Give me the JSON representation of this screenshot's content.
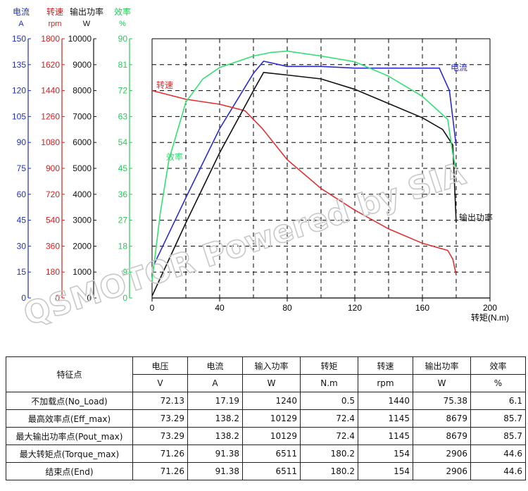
{
  "chart_data": {
    "type": "line",
    "x": [
      0,
      20,
      40,
      60,
      66,
      80,
      100,
      120,
      140,
      160,
      172,
      178,
      180
    ],
    "xlabel": "转矩(N.m)",
    "xticks": [
      0,
      40,
      80,
      120,
      160,
      200
    ],
    "xlim": [
      0,
      200
    ],
    "grid": true,
    "watermark": "QSMOTOR Powered by SIA",
    "axes": [
      {
        "key": "current",
        "title": "电流",
        "unit": "A",
        "color": "#1f2fb8",
        "ticks": [
          0,
          15,
          30,
          45,
          60,
          75,
          90,
          105,
          120,
          135,
          150
        ],
        "ylim": [
          0,
          150
        ]
      },
      {
        "key": "speed",
        "title": "转速",
        "unit": "rpm",
        "color": "#d22020",
        "ticks": [
          0,
          180,
          360,
          540,
          720,
          900,
          1080,
          1260,
          1440,
          1620,
          1800
        ],
        "ylim": [
          0,
          1800
        ]
      },
      {
        "key": "power",
        "title": "输出功率",
        "unit": "W",
        "color": "#111111",
        "ticks": [
          0,
          1000,
          2000,
          3000,
          4000,
          5000,
          6000,
          7000,
          8000,
          9000,
          10000
        ],
        "ylim": [
          0,
          10000
        ]
      },
      {
        "key": "efficiency",
        "title": "效率",
        "unit": "%",
        "color": "#22cc55",
        "ticks": [
          0,
          9,
          18,
          27,
          36,
          45,
          54,
          63,
          72,
          81,
          90
        ],
        "ylim": [
          0,
          90
        ]
      }
    ],
    "series": [
      {
        "name": "电流",
        "axis": "current",
        "color": "#2a2ad0",
        "points": [
          [
            0,
            17
          ],
          [
            20,
            58
          ],
          [
            40,
            98
          ],
          [
            60,
            130
          ],
          [
            66,
            137
          ],
          [
            80,
            134
          ],
          [
            100,
            134
          ],
          [
            120,
            133
          ],
          [
            140,
            133
          ],
          [
            160,
            133
          ],
          [
            170,
            133
          ],
          [
            176,
            120
          ],
          [
            180,
            88
          ]
        ]
      },
      {
        "name": "转速",
        "axis": "speed",
        "color": "#e03030",
        "points": [
          [
            0,
            1440
          ],
          [
            20,
            1380
          ],
          [
            40,
            1345
          ],
          [
            55,
            1300
          ],
          [
            65,
            1180
          ],
          [
            80,
            960
          ],
          [
            100,
            760
          ],
          [
            120,
            610
          ],
          [
            140,
            480
          ],
          [
            160,
            380
          ],
          [
            175,
            330
          ],
          [
            178,
            270
          ],
          [
            180,
            160
          ]
        ]
      },
      {
        "name": "输出功率",
        "axis": "power",
        "color": "#111111",
        "points": [
          [
            0,
            75
          ],
          [
            20,
            2900
          ],
          [
            40,
            5600
          ],
          [
            60,
            8000
          ],
          [
            66,
            8700
          ],
          [
            80,
            8600
          ],
          [
            100,
            8450
          ],
          [
            120,
            8050
          ],
          [
            140,
            7500
          ],
          [
            160,
            6950
          ],
          [
            172,
            6500
          ],
          [
            178,
            5900
          ],
          [
            180,
            2906
          ]
        ]
      },
      {
        "name": "效率",
        "axis": "efficiency",
        "color": "#33e070",
        "points": [
          [
            0,
            6
          ],
          [
            5,
            30
          ],
          [
            10,
            48
          ],
          [
            20,
            68
          ],
          [
            30,
            76
          ],
          [
            40,
            80
          ],
          [
            60,
            84
          ],
          [
            70,
            85.2
          ],
          [
            80,
            85.7
          ],
          [
            100,
            84
          ],
          [
            120,
            82
          ],
          [
            140,
            77
          ],
          [
            160,
            70
          ],
          [
            175,
            62
          ],
          [
            178,
            50
          ],
          [
            180,
            44.6
          ]
        ]
      }
    ]
  },
  "table": {
    "header_param": "特征点",
    "columns": [
      "电压",
      "电流",
      "输入功率",
      "转矩",
      "转速",
      "输出功率",
      "效率"
    ],
    "units": [
      "V",
      "A",
      "W",
      "N.m",
      "rpm",
      "W",
      "%"
    ],
    "rows": [
      {
        "label": "不加载点(No_Load)",
        "values": [
          "72.13",
          "17.19",
          "1240",
          "0.5",
          "1440",
          "75.38",
          "6.1"
        ]
      },
      {
        "label": "最高效率点(Eff_max)",
        "values": [
          "73.29",
          "138.2",
          "10129",
          "72.4",
          "1145",
          "8679",
          "85.7"
        ]
      },
      {
        "label": "最大输出功率点(Pout_max)",
        "values": [
          "73.29",
          "138.2",
          "10129",
          "72.4",
          "1145",
          "8679",
          "85.7"
        ]
      },
      {
        "label": "最大转矩点(Torque_max)",
        "values": [
          "71.26",
          "91.38",
          "6511",
          "180.2",
          "154",
          "2906",
          "44.6"
        ]
      },
      {
        "label": "结束点(End)",
        "values": [
          "71.26",
          "91.38",
          "6511",
          "180.2",
          "154",
          "2906",
          "44.6"
        ]
      }
    ]
  }
}
